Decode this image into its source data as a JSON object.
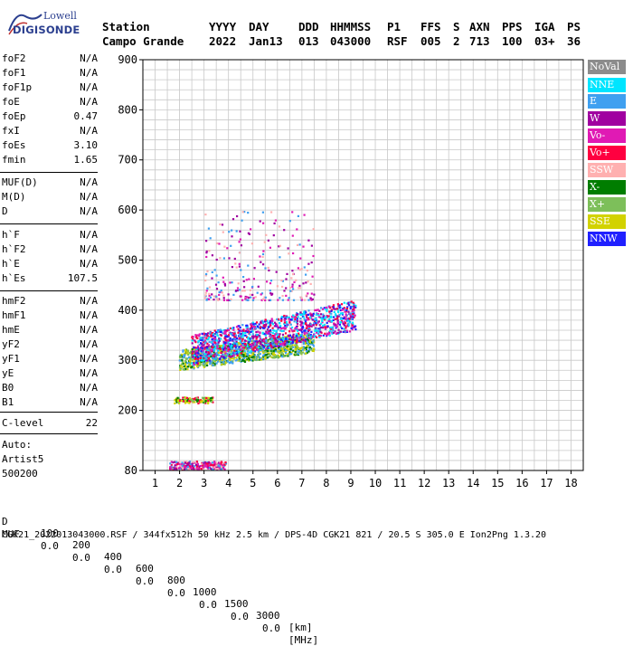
{
  "logo": {
    "top_text": "Lowell",
    "brand_text": "DIGISONDE"
  },
  "header": {
    "labels": [
      "Station",
      "YYYY",
      "DAY",
      "DDD",
      "HHMMSS",
      "P1",
      "FFS",
      "S",
      "AXN",
      "PPS",
      "IGA",
      "PS"
    ],
    "values": [
      "Campo Grande",
      "2022",
      "Jan13",
      "013",
      "043000",
      "RSF",
      "005",
      "2",
      "713",
      "100",
      "03+",
      "36"
    ]
  },
  "params": {
    "group1": [
      {
        "name": "foF2",
        "value": "N/A"
      },
      {
        "name": "foF1",
        "value": "N/A"
      },
      {
        "name": "foF1p",
        "value": "N/A"
      },
      {
        "name": "foE",
        "value": "N/A"
      },
      {
        "name": "foEp",
        "value": "0.47"
      },
      {
        "name": "fxI",
        "value": "N/A"
      },
      {
        "name": "foEs",
        "value": "3.10"
      },
      {
        "name": "fmin",
        "value": "1.65"
      }
    ],
    "group2": [
      {
        "name": "MUF(D)",
        "value": "N/A"
      },
      {
        "name": "M(D)",
        "value": "N/A"
      },
      {
        "name": "D",
        "value": "N/A"
      }
    ],
    "group3": [
      {
        "name": "h`F",
        "value": "N/A"
      },
      {
        "name": "h`F2",
        "value": "N/A"
      },
      {
        "name": "h`E",
        "value": "N/A"
      },
      {
        "name": "h`Es",
        "value": "107.5"
      }
    ],
    "group4": [
      {
        "name": "hmF2",
        "value": "N/A"
      },
      {
        "name": "hmF1",
        "value": "N/A"
      },
      {
        "name": "hmE",
        "value": "N/A"
      },
      {
        "name": "yF2",
        "value": "N/A"
      },
      {
        "name": "yF1",
        "value": "N/A"
      },
      {
        "name": "yE",
        "value": "N/A"
      },
      {
        "name": "B0",
        "value": "N/A"
      },
      {
        "name": "B1",
        "value": "N/A"
      }
    ],
    "clevel": {
      "name": "C-level",
      "value": "22"
    },
    "auto": [
      "Auto:",
      "Artist5",
      "500200"
    ]
  },
  "legend": [
    {
      "label": "NoVal",
      "color": "#8c8c8c"
    },
    {
      "label": "NNE",
      "color": "#00e5ff"
    },
    {
      "label": "E",
      "color": "#3fa0f0"
    },
    {
      "label": "W",
      "color": "#a000a0"
    },
    {
      "label": "Vo-",
      "color": "#e01ab4"
    },
    {
      "label": "Vo+",
      "color": "#ff0040"
    },
    {
      "label": "SSW",
      "color": "#ffb0b0"
    },
    {
      "label": "X-",
      "color": "#007d00"
    },
    {
      "label": "X+",
      "color": "#7dbf5a"
    },
    {
      "label": "SSE",
      "color": "#d2d200"
    },
    {
      "label": "NNW",
      "color": "#2020ff"
    }
  ],
  "footer": {
    "d_label": "D",
    "d_values": [
      "100",
      "200",
      "400",
      "600",
      "800",
      "1000",
      "1500",
      "3000"
    ],
    "d_unit": "[km]",
    "muf_label": "MUF",
    "muf_values": [
      "0.0",
      "0.0",
      "0.0",
      "0.0",
      "0.0",
      "0.0",
      "0.0",
      "0.0"
    ],
    "muf_unit": "[MHz]",
    "source_line": "CGK21_2022013043000.RSF / 344fx512h 50 kHz 2.5 km / DPS-4D CGK21 821 / 20.5 S 305.0 E Ion2Png 1.3.20"
  },
  "chart_data": {
    "type": "scatter",
    "x_ticks": [
      "1",
      "2",
      "3",
      "4",
      "5",
      "6",
      "7",
      "8",
      "9",
      "10",
      "11",
      "12",
      "13",
      "14",
      "15",
      "16",
      "17",
      "18"
    ],
    "y_ticks": [
      "80",
      "200",
      "300",
      "400",
      "500",
      "600",
      "700",
      "800",
      "900"
    ],
    "xlim": [
      0.5,
      18.5
    ],
    "ylim": [
      80,
      900
    ],
    "grid": true,
    "traces": [
      {
        "name": "es_low",
        "x_range": [
          1.6,
          3.9
        ],
        "y_range": [
          82,
          98
        ],
        "colors": [
          "#a000a0",
          "#3fa0f0",
          "#e01ab4",
          "#ffb0b0",
          "#ff0040"
        ]
      },
      {
        "name": "es_mid",
        "x_range": [
          1.8,
          3.4
        ],
        "y_range": [
          214,
          226
        ],
        "colors": [
          "#d2d200",
          "#007d00",
          "#ff0040",
          "#7dbf5a"
        ]
      },
      {
        "name": "f_layer_low",
        "x_range": [
          2.0,
          7.5
        ],
        "y_range": [
          285,
          345
        ],
        "colors": [
          "#d2d200",
          "#7dbf5a",
          "#007d00",
          "#3fa0f0"
        ]
      },
      {
        "name": "f_layer_mid",
        "x_range": [
          2.5,
          9.2
        ],
        "y_range": [
          320,
          420
        ],
        "colors": [
          "#3fa0f0",
          "#e01ab4",
          "#a000a0",
          "#ff0040",
          "#00e5ff",
          "#2020ff"
        ]
      },
      {
        "name": "f_layer_high",
        "x_range": [
          3.0,
          7.5
        ],
        "y_range": [
          420,
          600
        ],
        "colors": [
          "#ffb0b0",
          "#e01ab4",
          "#3fa0f0",
          "#a000a0"
        ]
      }
    ]
  }
}
